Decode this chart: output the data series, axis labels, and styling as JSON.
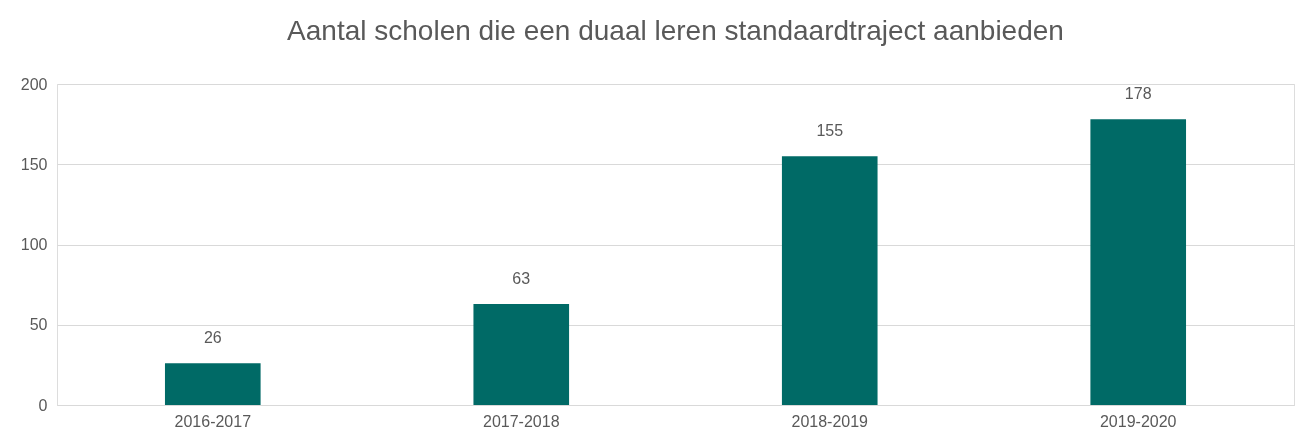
{
  "chart_data": {
    "type": "bar",
    "title": "Aantal scholen die een duaal leren standaardtraject aanbieden",
    "categories": [
      "2016-2017",
      "2017-2018",
      "2018-2019",
      "2019-2020"
    ],
    "values": [
      26,
      63,
      155,
      178
    ],
    "color": "#006a66",
    "ylim": [
      0,
      200
    ],
    "yticks": [
      0,
      50,
      100,
      150,
      200
    ],
    "grid": "y",
    "data_labels": true
  }
}
